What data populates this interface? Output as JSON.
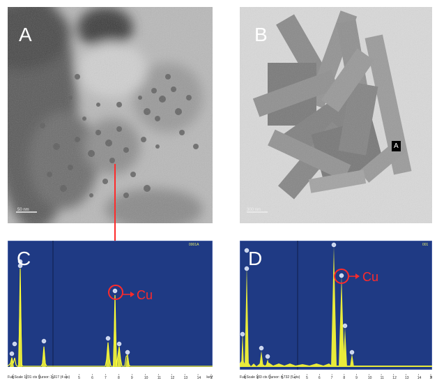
{
  "panels": {
    "a": {
      "letter": "A",
      "scale_bar": "50 nm"
    },
    "b": {
      "letter": "B",
      "scale_bar": "300 nm",
      "point_marker": "A"
    },
    "c": {
      "letter": "C",
      "element": "Cu",
      "corner_id": "0001A",
      "footer_left": "Full Scale 1231 cts Cursor: 3.317  (4 cts)",
      "footer_right": "keV"
    },
    "d": {
      "letter": "D",
      "element": "Cu",
      "corner_id": "001",
      "footer_left": "Full Scale 183 cts Cursor: 4.732  (5 cts)",
      "footer_right": "k"
    }
  },
  "axis_ticks": [
    "0",
    "1",
    "2",
    "3",
    "4",
    "5",
    "6",
    "7",
    "8",
    "9",
    "10",
    "11",
    "12",
    "13",
    "14",
    "15"
  ],
  "colors": {
    "spectrum_bg": "#1f3a84",
    "peak": "#ffff33",
    "annotation": "#ff2a2a",
    "peak_marker": "#c8d4f0"
  }
}
